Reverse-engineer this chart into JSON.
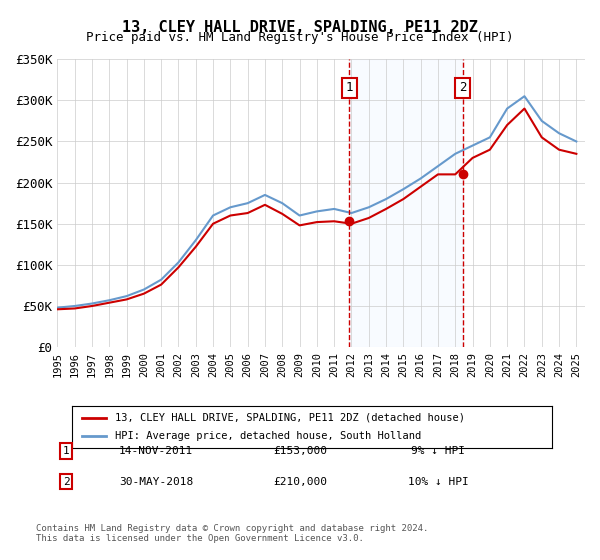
{
  "title": "13, CLEY HALL DRIVE, SPALDING, PE11 2DZ",
  "subtitle": "Price paid vs. HM Land Registry's House Price Index (HPI)",
  "legend_line1": "13, CLEY HALL DRIVE, SPALDING, PE11 2DZ (detached house)",
  "legend_line2": "HPI: Average price, detached house, South Holland",
  "annotation1_label": "1",
  "annotation1_date": "14-NOV-2011",
  "annotation1_price": "£153,000",
  "annotation1_hpi": "9% ↓ HPI",
  "annotation2_label": "2",
  "annotation2_date": "30-MAY-2018",
  "annotation2_price": "£210,000",
  "annotation2_hpi": "10% ↓ HPI",
  "footnote": "Contains HM Land Registry data © Crown copyright and database right 2024.\nThis data is licensed under the Open Government Licence v3.0.",
  "red_color": "#cc0000",
  "blue_color": "#6699cc",
  "blue_fill_color": "#ddeeff",
  "marker_box_color": "#cc0000",
  "ylim": [
    0,
    350000
  ],
  "yticks": [
    0,
    50000,
    100000,
    150000,
    200000,
    250000,
    300000,
    350000
  ],
  "ytick_labels": [
    "£0",
    "£50K",
    "£100K",
    "£150K",
    "£200K",
    "£250K",
    "£300K",
    "£350K"
  ],
  "hpi_years": [
    1995,
    1996,
    1997,
    1998,
    1999,
    2000,
    2001,
    2002,
    2003,
    2004,
    2005,
    2006,
    2007,
    2008,
    2009,
    2010,
    2011,
    2012,
    2013,
    2014,
    2015,
    2016,
    2017,
    2018,
    2019,
    2020,
    2021,
    2022,
    2023,
    2024,
    2025
  ],
  "hpi_values": [
    48000,
    50000,
    53000,
    57000,
    62000,
    70000,
    82000,
    103000,
    130000,
    160000,
    170000,
    175000,
    185000,
    175000,
    160000,
    165000,
    168000,
    163000,
    170000,
    180000,
    192000,
    205000,
    220000,
    235000,
    245000,
    255000,
    290000,
    305000,
    275000,
    260000,
    250000
  ],
  "red_years": [
    1995,
    1996,
    1997,
    1998,
    1999,
    2000,
    2001,
    2002,
    2003,
    2004,
    2005,
    2006,
    2007,
    2008,
    2009,
    2010,
    2011,
    2012,
    2013,
    2014,
    2015,
    2016,
    2017,
    2018,
    2019,
    2020,
    2021,
    2022,
    2023,
    2024,
    2025
  ],
  "red_values": [
    46000,
    47000,
    50000,
    54000,
    58000,
    65000,
    76000,
    97000,
    122000,
    150000,
    160000,
    163000,
    173000,
    162000,
    148000,
    152000,
    153000,
    150000,
    157000,
    168000,
    180000,
    195000,
    210000,
    210000,
    230000,
    240000,
    270000,
    290000,
    255000,
    240000,
    235000
  ],
  "transaction1_year": 2011.87,
  "transaction1_value": 153000,
  "transaction2_year": 2018.42,
  "transaction2_value": 210000,
  "bg_color": "#ffffff",
  "grid_color": "#cccccc"
}
